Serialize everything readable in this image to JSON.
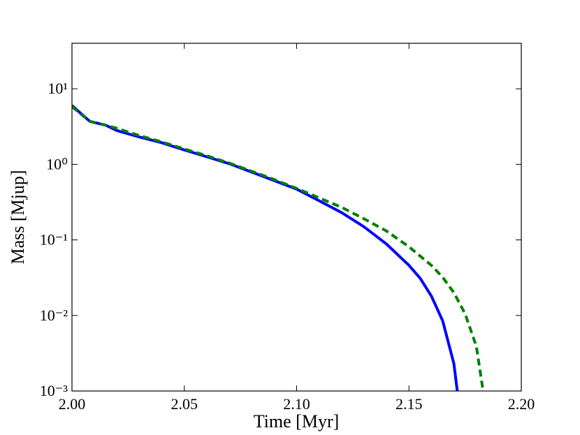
{
  "chart_data": {
    "type": "line",
    "x_label": "Time [Myr]",
    "y_label": "Mass [Mjup]",
    "xlim": [
      2.0,
      2.2
    ],
    "xticks": [
      {
        "value": 2.0,
        "label": "2.00"
      },
      {
        "value": 2.05,
        "label": "2.05"
      },
      {
        "value": 2.1,
        "label": "2.10"
      },
      {
        "value": 2.15,
        "label": "2.15"
      },
      {
        "value": 2.2,
        "label": "2.20"
      }
    ],
    "ylim": [
      0.001,
      40
    ],
    "yticks": [
      {
        "value": 0.001,
        "label": "10⁻³"
      },
      {
        "value": 0.01,
        "label": "10⁻²"
      },
      {
        "value": 0.1,
        "label": "10⁻¹"
      },
      {
        "value": 1,
        "label": "10⁰"
      },
      {
        "value": 10,
        "label": "10¹"
      }
    ],
    "log_y": true,
    "series": [
      {
        "name": "solid",
        "color": "#0000ff",
        "style": "solid",
        "x": [
          2.0,
          2.003,
          2.008,
          2.015,
          2.02,
          2.03,
          2.04,
          2.05,
          2.06,
          2.07,
          2.08,
          2.09,
          2.1,
          2.11,
          2.12,
          2.13,
          2.14,
          2.15,
          2.155,
          2.16,
          2.165,
          2.17,
          2.1715
        ],
        "values": [
          6.0,
          5.0,
          3.7,
          3.3,
          2.8,
          2.3,
          1.93,
          1.55,
          1.26,
          1.02,
          0.79,
          0.61,
          0.47,
          0.33,
          0.23,
          0.149,
          0.088,
          0.046,
          0.031,
          0.018,
          0.0085,
          0.0023,
          0.001
        ]
      },
      {
        "name": "dashed",
        "color": "#008000",
        "style": "dashed",
        "x": [
          2.0,
          2.003,
          2.008,
          2.015,
          2.02,
          2.03,
          2.04,
          2.05,
          2.06,
          2.07,
          2.08,
          2.09,
          2.1,
          2.11,
          2.12,
          2.13,
          2.14,
          2.15,
          2.16,
          2.165,
          2.17,
          2.175,
          2.18,
          2.183
        ],
        "values": [
          5.8,
          4.9,
          3.7,
          3.3,
          3.0,
          2.4,
          1.98,
          1.6,
          1.3,
          1.04,
          0.81,
          0.63,
          0.48,
          0.36,
          0.27,
          0.19,
          0.131,
          0.081,
          0.046,
          0.032,
          0.02,
          0.0105,
          0.0039,
          0.001
        ]
      }
    ]
  }
}
